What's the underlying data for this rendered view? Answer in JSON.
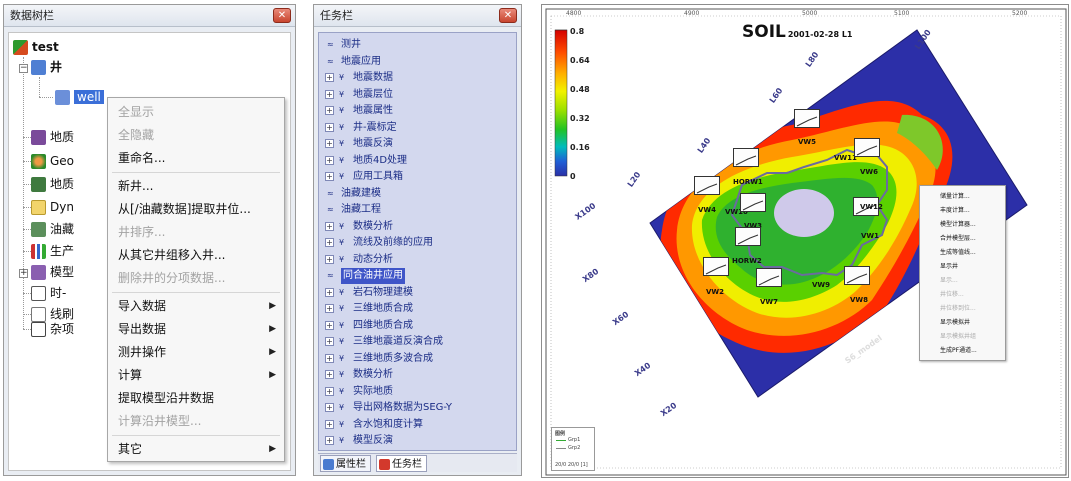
{
  "tree_panel": {
    "title": "数据树栏",
    "root": "test",
    "nodes": [
      {
        "label": "井",
        "icon": "well-folder-icon"
      },
      {
        "label": "well",
        "icon": "well-icon",
        "selected": true
      },
      {
        "label": "地质",
        "icon": "geology-icon"
      },
      {
        "label": "Geo",
        "icon": "geo-icon"
      },
      {
        "label": "地质",
        "icon": "geology-model-icon"
      },
      {
        "label": "Dyn",
        "icon": "folder-icon"
      },
      {
        "label": "油藏",
        "icon": "reservoir-icon"
      },
      {
        "label": "生产",
        "icon": "production-icon"
      },
      {
        "label": "模型",
        "icon": "model-icon"
      },
      {
        "label": "时-",
        "icon": "time-icon"
      },
      {
        "label": "线刷",
        "icon": "line-icon"
      },
      {
        "label": "杂项",
        "icon": "misc-icon"
      }
    ],
    "context_menu": [
      {
        "label": "全显示",
        "disabled": true,
        "submenu": false
      },
      {
        "label": "全隐藏",
        "disabled": true,
        "submenu": false
      },
      {
        "label": "重命名...",
        "disabled": false,
        "submenu": false
      },
      {
        "label": "新井...",
        "disabled": false,
        "submenu": false
      },
      {
        "label": "从[/油藏数据]提取井位...",
        "disabled": false,
        "submenu": false
      },
      {
        "label": "井排序...",
        "disabled": true,
        "submenu": false
      },
      {
        "label": "从其它井组移入井...",
        "disabled": false,
        "submenu": false
      },
      {
        "label": "删除井的分项数据...",
        "disabled": true,
        "submenu": false
      },
      {
        "label": "导入数据",
        "disabled": false,
        "submenu": true
      },
      {
        "label": "导出数据",
        "disabled": false,
        "submenu": true
      },
      {
        "label": "测井操作",
        "disabled": false,
        "submenu": true
      },
      {
        "label": "计算",
        "disabled": false,
        "submenu": true
      },
      {
        "label": "提取模型沿井数据",
        "disabled": false,
        "submenu": false
      },
      {
        "label": "计算沿井模型...",
        "disabled": true,
        "submenu": false
      },
      {
        "label": "其它",
        "disabled": false,
        "submenu": true
      }
    ]
  },
  "task_panel": {
    "title": "任务栏",
    "items": [
      {
        "label": "测井",
        "expander": "none"
      },
      {
        "label": "地震应用",
        "expander": "none"
      },
      {
        "label": "地震数据",
        "expander": "plus"
      },
      {
        "label": "地震层位",
        "expander": "plus"
      },
      {
        "label": "地震属性",
        "expander": "plus"
      },
      {
        "label": "井-震标定",
        "expander": "plus"
      },
      {
        "label": "地震反演",
        "expander": "plus"
      },
      {
        "label": "地质4D处理",
        "expander": "plus"
      },
      {
        "label": "应用工具箱",
        "expander": "plus"
      },
      {
        "label": "油藏建模",
        "expander": "none"
      },
      {
        "label": "油藏工程",
        "expander": "none"
      },
      {
        "label": "数模分析",
        "expander": "plus"
      },
      {
        "label": "流线及前缘的应用",
        "expander": "plus"
      },
      {
        "label": "动态分析",
        "expander": "plus"
      },
      {
        "label": "同合油井应用",
        "expander": "none",
        "highlight": true
      },
      {
        "label": "岩石物理建模",
        "expander": "plus"
      },
      {
        "label": "三维地质合成",
        "expander": "plus"
      },
      {
        "label": "四维地质合成",
        "expander": "plus"
      },
      {
        "label": "三维地震道反演合成",
        "expander": "plus"
      },
      {
        "label": "三维地质多波合成",
        "expander": "plus"
      },
      {
        "label": "数模分析",
        "expander": "plus"
      },
      {
        "label": "实际地质",
        "expander": "plus"
      },
      {
        "label": "导出网格数据为SEG-Y",
        "expander": "plus"
      },
      {
        "label": "含水饱和度计算",
        "expander": "plus"
      },
      {
        "label": "模型反演",
        "expander": "plus"
      }
    ],
    "tabs": [
      {
        "label": "属性栏",
        "icon": "properties-icon"
      },
      {
        "label": "任务栏",
        "icon": "tasks-icon"
      }
    ]
  },
  "map_panel": {
    "title": "SOIL",
    "date": "2001-02-28 L1",
    "colorbar": {
      "labels": [
        "0.8",
        "0.64",
        "0.48",
        "0.32",
        "0.16",
        "0"
      ],
      "colors": [
        "#d40000",
        "#ff4b00",
        "#ffb000",
        "#f2f200",
        "#9be000",
        "#23c323",
        "#00bcbc",
        "#1f5fd6",
        "#2a2fa6"
      ]
    },
    "row_labels": [
      "L100",
      "L80",
      "L60",
      "L40",
      "L20"
    ],
    "col_labels": [
      "X100",
      "X80",
      "X60",
      "X40",
      "X20"
    ],
    "grid_label": "S6_model",
    "top_ticks": [
      "4800",
      "4900",
      "5000",
      "5100",
      "5200"
    ],
    "wells": [
      "VW5",
      "VW11",
      "VW6",
      "HORW1",
      "VW4",
      "VW10",
      "VW3",
      "VW12",
      "VW1",
      "HORW2",
      "VW2",
      "VW7",
      "VW9",
      "VW8"
    ],
    "context_menu": [
      {
        "label": "储量计算...",
        "disabled": false
      },
      {
        "label": "丰度计算...",
        "disabled": false
      },
      {
        "label": "模型计算器...",
        "disabled": false
      },
      {
        "label": "合并模型层...",
        "disabled": false
      },
      {
        "label": "生成等值线...",
        "disabled": false
      },
      {
        "label": "显示井",
        "disabled": false
      },
      {
        "label": "显示...",
        "disabled": true
      },
      {
        "label": "井位移...",
        "disabled": true
      },
      {
        "label": "井位移到位...",
        "disabled": true
      },
      {
        "label": "显示模拟井",
        "disabled": false
      },
      {
        "label": "显示模拟井组",
        "disabled": true
      },
      {
        "label": "生成PF通道...",
        "disabled": false
      }
    ],
    "legend": {
      "title": "图例",
      "items": [
        "Grp1",
        "Grp2"
      ],
      "footer": "20/0 20/0 [1]"
    }
  }
}
